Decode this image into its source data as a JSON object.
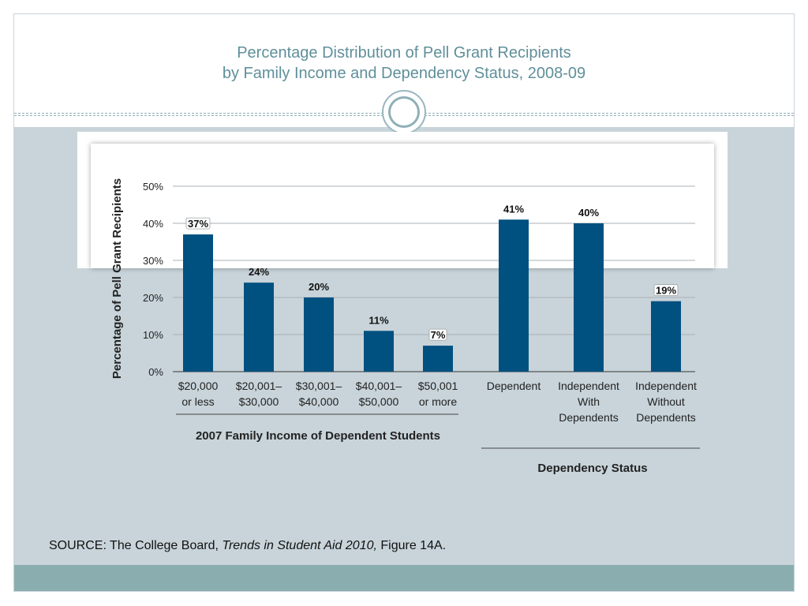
{
  "slide": {
    "title_line1": "Percentage Distribution of Pell Grant Recipients",
    "title_line2": "by Family Income and Dependency Status, 2008-09",
    "source_prefix": "SOURCE: The College Board, ",
    "source_italic": "Trends in Student Aid 2010,",
    "source_suffix": " Figure 14A."
  },
  "chart_data": {
    "type": "bar",
    "ylabel": "Percentage of Pell Grant Recipients",
    "ylim": [
      0,
      50
    ],
    "yticks": [
      0,
      10,
      20,
      30,
      40,
      50
    ],
    "ytick_labels": [
      "0%",
      "10%",
      "20%",
      "30%",
      "40%",
      "50%"
    ],
    "grid": true,
    "bar_color": "#005080",
    "categories": [
      [
        "$20,000",
        "or less"
      ],
      [
        "$20,001–",
        "$30,000"
      ],
      [
        "$30,001–",
        "$40,000"
      ],
      [
        "$40,001–",
        "$50,000"
      ],
      [
        "$50,001",
        "or more"
      ],
      [
        "Dependent"
      ],
      [
        "Independent",
        "With",
        "Dependents"
      ],
      [
        "Independent",
        "Without",
        "Dependents"
      ]
    ],
    "values": [
      37,
      24,
      20,
      11,
      7,
      41,
      40,
      19
    ],
    "value_labels": [
      "37%",
      "24%",
      "20%",
      "11%",
      "7%",
      "41%",
      "40%",
      "19%"
    ],
    "groups": [
      {
        "label": "2007 Family Income of Dependent Students",
        "start": 0,
        "end": 4
      },
      {
        "label": "Dependency Status",
        "start": 5,
        "end": 7
      }
    ]
  }
}
